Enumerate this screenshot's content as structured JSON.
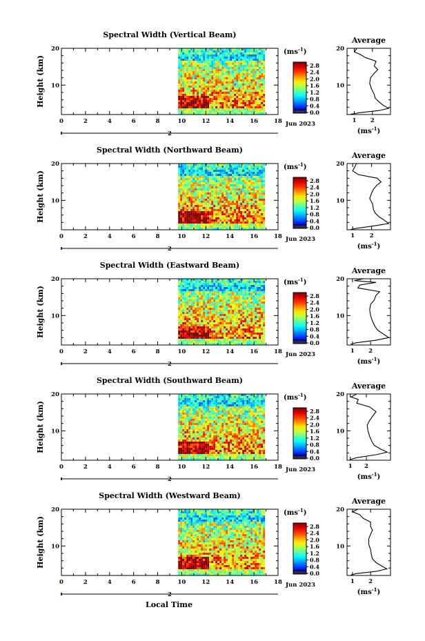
{
  "figure": {
    "xlabel": "Local Time",
    "date_label": "Jun 2023",
    "day_marker": "2",
    "ylabel": "Height (km)",
    "unit_label": "(ms",
    "unit_exp": "-1",
    "unit_close": ")",
    "average_title": "Average",
    "colorbar_ticks": [
      "0.0",
      "0.4",
      "0.8",
      "1.2",
      "1.6",
      "2.0",
      "2.4",
      "2.8"
    ]
  },
  "chart_data": [
    {
      "type": "heatmap",
      "title": "Spectral Width (Vertical Beam)",
      "xlim": [
        0,
        18
      ],
      "ylim": [
        2,
        20
      ],
      "xticks": [
        0,
        2,
        4,
        6,
        8,
        10,
        12,
        14,
        16,
        18
      ],
      "yticks": [
        10,
        20
      ],
      "data_start_hour": 9.7,
      "data_end_hour": 16.8,
      "colorbar": {
        "min": 0.0,
        "max": 3.0
      },
      "average_profile": {
        "xticks": [
          1,
          2
        ],
        "xlim": [
          0.6,
          3.0
        ],
        "points": [
          [
            1.15,
            20
          ],
          [
            1.0,
            19
          ],
          [
            1.3,
            18.4
          ],
          [
            1.6,
            17.5
          ],
          [
            2.2,
            16.5
          ],
          [
            2.1,
            15.2
          ],
          [
            2.3,
            14.2
          ],
          [
            2.1,
            13.2
          ],
          [
            1.9,
            12
          ],
          [
            1.85,
            10.5
          ],
          [
            1.95,
            9
          ],
          [
            2.1,
            7.5
          ],
          [
            2.15,
            6.5
          ],
          [
            2.35,
            5.5
          ],
          [
            2.6,
            4.5
          ],
          [
            2.9,
            3.7
          ],
          [
            2.4,
            3.1
          ],
          [
            1.3,
            2.5
          ],
          [
            0.8,
            2.1
          ]
        ]
      }
    },
    {
      "type": "heatmap",
      "title": "Spectral Width (Northward Beam)",
      "xlim": [
        0,
        18
      ],
      "ylim": [
        2,
        20
      ],
      "xticks": [
        0,
        2,
        4,
        6,
        8,
        10,
        12,
        14,
        16,
        18
      ],
      "yticks": [
        10,
        20
      ],
      "data_start_hour": 9.7,
      "data_end_hour": 16.8,
      "colorbar": {
        "min": 0.0,
        "max": 3.0
      },
      "average_profile": {
        "xticks": [
          1,
          2
        ],
        "xlim": [
          0.7,
          3.0
        ],
        "points": [
          [
            1.2,
            20
          ],
          [
            1.1,
            19
          ],
          [
            1.0,
            18
          ],
          [
            1.3,
            17
          ],
          [
            2.3,
            16
          ],
          [
            2.5,
            15
          ],
          [
            2.3,
            14.2
          ],
          [
            2.1,
            13
          ],
          [
            2.0,
            12
          ],
          [
            1.9,
            10.5
          ],
          [
            2.05,
            9
          ],
          [
            2.1,
            7.5
          ],
          [
            2.2,
            6.5
          ],
          [
            2.4,
            5.5
          ],
          [
            2.7,
            4.5
          ],
          [
            2.9,
            3.7
          ],
          [
            2.2,
            3.1
          ],
          [
            1.2,
            2.4
          ],
          [
            0.9,
            2.1
          ]
        ]
      }
    },
    {
      "type": "heatmap",
      "title": "Spectral Width (Eastward Beam)",
      "xlim": [
        0,
        18
      ],
      "ylim": [
        2,
        20
      ],
      "xticks": [
        0,
        2,
        4,
        6,
        8,
        10,
        12,
        14,
        16,
        18
      ],
      "yticks": [
        10,
        20
      ],
      "data_start_hour": 9.7,
      "data_end_hour": 16.8,
      "colorbar": {
        "min": 0.0,
        "max": 3.0
      },
      "average_profile": {
        "xticks": [
          1,
          2
        ],
        "xlim": [
          0.7,
          3.1
        ],
        "points": [
          [
            1.6,
            20
          ],
          [
            1.1,
            19.5
          ],
          [
            2.3,
            19
          ],
          [
            1.4,
            18.3
          ],
          [
            1.3,
            17.5
          ],
          [
            2.5,
            16.5
          ],
          [
            2.3,
            15.5
          ],
          [
            2.2,
            14.2
          ],
          [
            2.0,
            13
          ],
          [
            1.95,
            11.5
          ],
          [
            2.0,
            10
          ],
          [
            2.1,
            8.5
          ],
          [
            2.25,
            7
          ],
          [
            2.4,
            6
          ],
          [
            2.7,
            5
          ],
          [
            3.0,
            4
          ],
          [
            2.3,
            3.3
          ],
          [
            1.2,
            2.6
          ],
          [
            0.9,
            2.2
          ]
        ]
      }
    },
    {
      "type": "heatmap",
      "title": "Spectral Width (Southward Beam)",
      "xlim": [
        0,
        18
      ],
      "ylim": [
        2,
        20
      ],
      "xticks": [
        0,
        2,
        4,
        6,
        8,
        10,
        12,
        14,
        16,
        18
      ],
      "yticks": [
        10,
        20
      ],
      "data_start_hour": 9.7,
      "data_end_hour": 16.8,
      "colorbar": {
        "min": 0.0,
        "max": 3.0
      },
      "average_profile": {
        "xticks": [
          1,
          2
        ],
        "xlim": [
          0.8,
          3.5
        ],
        "points": [
          [
            1.4,
            20
          ],
          [
            1.05,
            19.2
          ],
          [
            1.5,
            18.5
          ],
          [
            1.4,
            17.5
          ],
          [
            2.2,
            16.5
          ],
          [
            2.6,
            15.2
          ],
          [
            2.4,
            14
          ],
          [
            2.2,
            12.8
          ],
          [
            2.05,
            11.5
          ],
          [
            2.1,
            10
          ],
          [
            2.2,
            8.5
          ],
          [
            2.35,
            7
          ],
          [
            2.5,
            6
          ],
          [
            2.9,
            5
          ],
          [
            3.3,
            4.2
          ],
          [
            2.6,
            3.5
          ],
          [
            1.4,
            2.7
          ],
          [
            1.0,
            2.2
          ]
        ]
      }
    },
    {
      "type": "heatmap",
      "title": "Spectral Width (Westward Beam)",
      "xlim": [
        0,
        18
      ],
      "ylim": [
        2,
        20
      ],
      "xticks": [
        0,
        2,
        4,
        6,
        8,
        10,
        12,
        14,
        16,
        18
      ],
      "yticks": [
        10,
        20
      ],
      "data_start_hour": 9.7,
      "data_end_hour": 16.8,
      "colorbar": {
        "min": 0.0,
        "max": 3.0
      },
      "average_profile": {
        "xticks": [
          1,
          2
        ],
        "xlim": [
          0.7,
          3.1
        ],
        "points": [
          [
            1.3,
            20
          ],
          [
            1.0,
            19.3
          ],
          [
            1.4,
            18.5
          ],
          [
            1.6,
            17.5
          ],
          [
            2.0,
            16.5
          ],
          [
            2.0,
            15.3
          ],
          [
            2.1,
            14.3
          ],
          [
            2.0,
            13.2
          ],
          [
            1.9,
            12
          ],
          [
            1.9,
            10.5
          ],
          [
            2.0,
            9
          ],
          [
            2.05,
            7.5
          ],
          [
            2.1,
            6.5
          ],
          [
            2.3,
            5.5
          ],
          [
            2.6,
            4.6
          ],
          [
            2.9,
            3.8
          ],
          [
            2.3,
            3.1
          ],
          [
            1.2,
            2.5
          ],
          [
            0.9,
            2.1
          ]
        ]
      }
    }
  ]
}
